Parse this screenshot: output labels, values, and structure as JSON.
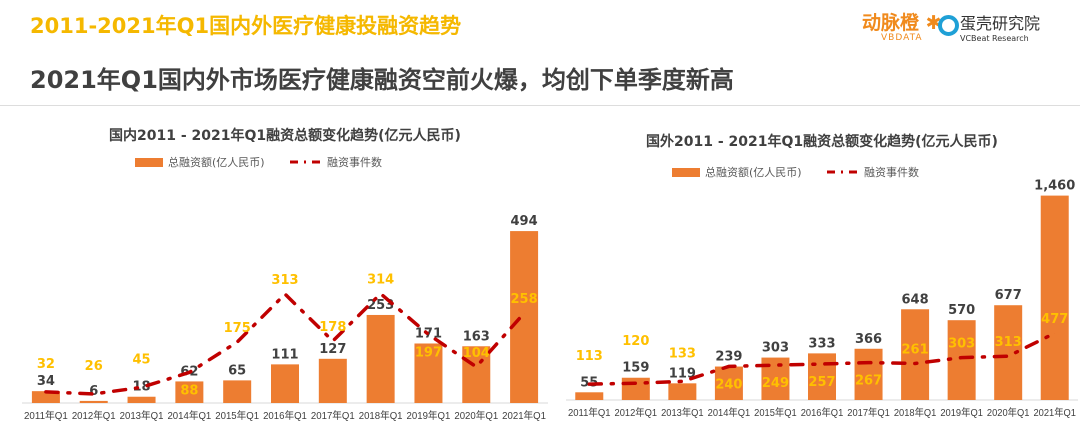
{
  "header": {
    "title": "2011-2021年Q1国内外医疗健康投融资趋势",
    "subtitle": "2021年Q1国内外市场医疗健康融资空前火爆，均创下单季度新高",
    "logo_vbdata": "动脉橙",
    "logo_vbdata_en": "VBDATA",
    "logo_vcbeat": "蛋壳研究院",
    "logo_vcbeat_en": "VCBeat Research"
  },
  "colors": {
    "bar": "#ed7d31",
    "line": "#c00000",
    "event_label": "#ffc000",
    "bar_label": "#404040"
  },
  "chart_data": [
    {
      "type": "bar+line",
      "title": "国内2011 - 2021年Q1融资总额变化趋势(亿元人民币)",
      "categories": [
        "2011年Q1",
        "2012年Q1",
        "2013年Q1",
        "2014年Q1",
        "2015年Q1",
        "2016年Q1",
        "2017年Q1",
        "2018年Q1",
        "2019年Q1",
        "2020年Q1",
        "2021年Q1"
      ],
      "series": [
        {
          "name": "总融资额(亿人民币)",
          "type": "bar",
          "values": [
            34,
            6,
            18,
            62,
            65,
            111,
            127,
            253,
            171,
            163,
            494
          ]
        },
        {
          "name": "融资事件数",
          "type": "line",
          "values": [
            32,
            26,
            45,
            88,
            175,
            313,
            178,
            314,
            197,
            104,
            258
          ]
        }
      ],
      "legend": "top"
    },
    {
      "type": "bar+line",
      "title": "国外2011 - 2021年Q1融资总额变化趋势(亿元人民币)",
      "categories": [
        "2011年Q1",
        "2012年Q1",
        "2013年Q1",
        "2014年Q1",
        "2015年Q1",
        "2016年Q1",
        "2017年Q1",
        "2018年Q1",
        "2019年Q1",
        "2020年Q1",
        "2021年Q1"
      ],
      "series": [
        {
          "name": "总融资额(亿人民币)",
          "type": "bar",
          "values": [
            55,
            159,
            119,
            239,
            303,
            333,
            366,
            648,
            570,
            677,
            1460
          ]
        },
        {
          "name": "融资事件数",
          "type": "line",
          "values": [
            113,
            120,
            133,
            240,
            249,
            257,
            267,
            261,
            303,
            313,
            477
          ]
        }
      ],
      "legend": "top"
    }
  ]
}
